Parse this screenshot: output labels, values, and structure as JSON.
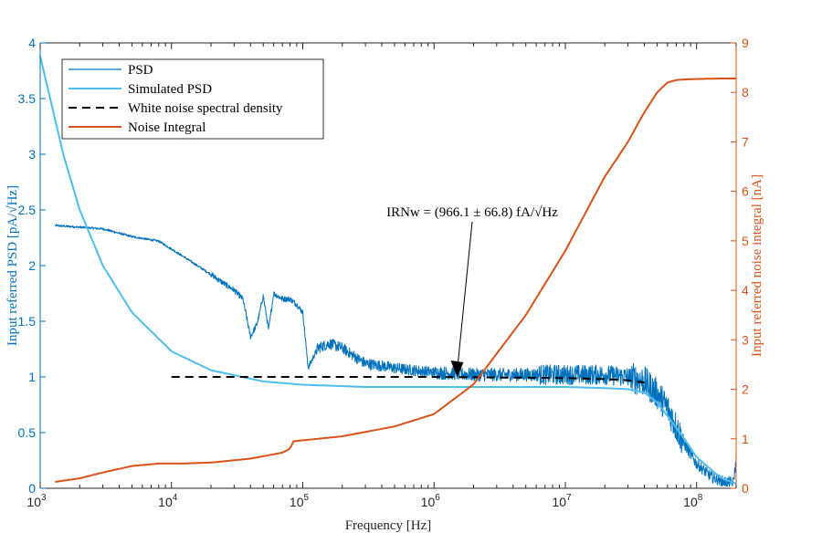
{
  "chart_data": {
    "type": "line",
    "xscale": "log",
    "xlim": [
      1000,
      200000000
    ],
    "xlabel": "Frequency [Hz]",
    "ylabel_left": "Input referred PSD [pA/√Hz]",
    "ylabel_right": "Input referred noise integral [nA]",
    "ylim_left": [
      0,
      4
    ],
    "ylim_right": [
      0,
      9
    ],
    "x_ticks": [
      {
        "base": "10",
        "exp": "3"
      },
      {
        "base": "10",
        "exp": "4"
      },
      {
        "base": "10",
        "exp": "5"
      },
      {
        "base": "10",
        "exp": "6"
      },
      {
        "base": "10",
        "exp": "7"
      },
      {
        "base": "10",
        "exp": "8"
      }
    ],
    "y_left_ticks": [
      "0",
      "0.5",
      "1",
      "1.5",
      "2",
      "2.5",
      "3",
      "3.5",
      "4"
    ],
    "y_right_ticks": [
      "0",
      "1",
      "2",
      "3",
      "4",
      "5",
      "6",
      "7",
      "8",
      "9"
    ],
    "legend": {
      "position": "top-left",
      "entries": [
        {
          "label": "PSD",
          "color": "#0072BD",
          "style": "solid"
        },
        {
          "label": "Simulated PSD",
          "color": "#4DBEEE",
          "style": "solid"
        },
        {
          "label": "White noise spectral density",
          "color": "#000000",
          "style": "dashed"
        },
        {
          "label": "Noise Integral",
          "color": "#D95319",
          "style": "solid"
        }
      ]
    },
    "annotation": {
      "text": "IRNw = (966.1 ± 66.8) fA/√Hz",
      "arrow_target": {
        "x": 1500000,
        "y": 1.0
      }
    },
    "series": [
      {
        "name": "PSD",
        "axis": "left",
        "x": [
          1300,
          3000,
          5000,
          8000,
          12000,
          20000,
          25000,
          30000,
          35000,
          40000,
          45000,
          50000,
          55000,
          60000,
          70000,
          80000,
          90000,
          100000,
          110000,
          130000,
          160000,
          200000,
          250000,
          300000,
          400000,
          500000,
          700000,
          1000000,
          1500000,
          2000000,
          3000000,
          5000000,
          10000000,
          20000000,
          30000000,
          40000000,
          50000000,
          60000000,
          70000000,
          80000000,
          100000000,
          130000000,
          160000000,
          190000000,
          200000000
        ],
        "y": [
          2.36,
          2.33,
          2.26,
          2.22,
          2.09,
          1.92,
          1.84,
          1.78,
          1.7,
          1.36,
          1.48,
          1.73,
          1.42,
          1.75,
          1.7,
          1.7,
          1.65,
          1.58,
          1.08,
          1.26,
          1.3,
          1.26,
          1.18,
          1.12,
          1.1,
          1.08,
          1.06,
          1.04,
          1.03,
          1.02,
          1.02,
          1.02,
          1.02,
          1.02,
          1.0,
          0.96,
          0.85,
          0.72,
          0.55,
          0.4,
          0.22,
          0.1,
          0.06,
          0.05,
          0.25
        ]
      },
      {
        "name": "Simulated PSD",
        "axis": "left",
        "x": [
          1000,
          1500,
          2000,
          3000,
          5000,
          10000,
          20000,
          50000,
          100000,
          300000,
          1000000,
          3000000,
          10000000,
          20000000,
          30000000,
          40000000,
          50000000,
          60000000,
          80000000,
          100000000,
          150000000,
          200000000
        ],
        "y": [
          3.88,
          3.0,
          2.5,
          2.0,
          1.58,
          1.23,
          1.06,
          0.96,
          0.93,
          0.91,
          0.91,
          0.91,
          0.91,
          0.9,
          0.89,
          0.86,
          0.77,
          0.65,
          0.45,
          0.28,
          0.1,
          0.04
        ]
      },
      {
        "name": "White noise spectral density",
        "axis": "left",
        "x": [
          10000,
          100000,
          1000000,
          10000000,
          20000000,
          30000000,
          40000000
        ],
        "y": [
          1.0,
          1.0,
          1.0,
          0.99,
          0.98,
          0.97,
          0.95
        ]
      },
      {
        "name": "Noise Integral",
        "axis": "right",
        "x": [
          1300,
          2000,
          3000,
          5000,
          8000,
          12000,
          20000,
          40000,
          70000,
          80000,
          85000,
          100000,
          200000,
          500000,
          1000000,
          2000000,
          5000000,
          10000000,
          20000000,
          30000000,
          40000000,
          50000000,
          60000000,
          70000000,
          80000000,
          100000000,
          150000000,
          200000000
        ],
        "y": [
          0.13,
          0.2,
          0.32,
          0.45,
          0.5,
          0.5,
          0.52,
          0.6,
          0.72,
          0.8,
          0.95,
          0.97,
          1.05,
          1.25,
          1.5,
          2.1,
          3.5,
          4.8,
          6.3,
          7.0,
          7.6,
          8.0,
          8.2,
          8.25,
          8.26,
          8.27,
          8.28,
          8.28
        ]
      }
    ]
  }
}
